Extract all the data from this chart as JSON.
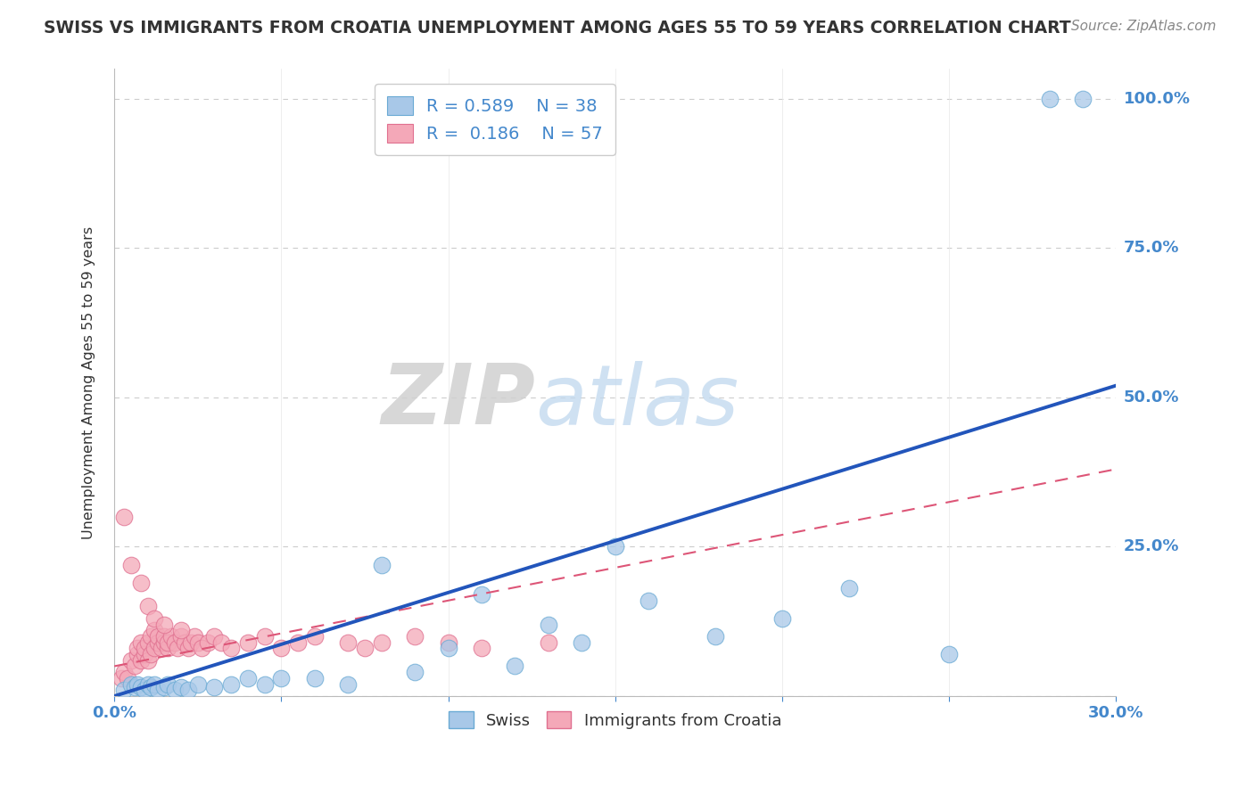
{
  "title": "SWISS VS IMMIGRANTS FROM CROATIA UNEMPLOYMENT AMONG AGES 55 TO 59 YEARS CORRELATION CHART",
  "source": "Source: ZipAtlas.com",
  "ylabel": "Unemployment Among Ages 55 to 59 years",
  "xlim": [
    0.0,
    0.3
  ],
  "ylim": [
    0.0,
    1.05
  ],
  "xticks": [
    0.0,
    0.05,
    0.1,
    0.15,
    0.2,
    0.25,
    0.3
  ],
  "xticklabels": [
    "0.0%",
    "",
    "",
    "",
    "",
    "",
    "30.0%"
  ],
  "ytick_positions": [
    0.0,
    0.25,
    0.5,
    0.75,
    1.0
  ],
  "ytick_labels": [
    "",
    "25.0%",
    "50.0%",
    "75.0%",
    "100.0%"
  ],
  "swiss_color": "#a8c8e8",
  "swiss_edge_color": "#6aaad4",
  "croatia_color": "#f4a8b8",
  "croatia_edge_color": "#e07090",
  "swiss_line_color": "#2255bb",
  "croatia_line_color": "#dd5577",
  "legend_R_swiss": "0.589",
  "legend_N_swiss": "38",
  "legend_R_croatia": "0.186",
  "legend_N_croatia": "57",
  "grid_color": "#cccccc",
  "title_color": "#333333",
  "title_fontsize": 13.5,
  "tick_color": "#4488cc",
  "background_color": "#ffffff",
  "swiss_scatter_x": [
    0.003,
    0.005,
    0.006,
    0.007,
    0.008,
    0.009,
    0.01,
    0.011,
    0.012,
    0.013,
    0.015,
    0.016,
    0.018,
    0.02,
    0.022,
    0.025,
    0.03,
    0.035,
    0.04,
    0.045,
    0.05,
    0.06,
    0.07,
    0.08,
    0.09,
    0.1,
    0.11,
    0.12,
    0.13,
    0.14,
    0.15,
    0.16,
    0.18,
    0.2,
    0.22,
    0.25,
    0.28,
    0.29
  ],
  "swiss_scatter_y": [
    0.01,
    0.02,
    0.015,
    0.02,
    0.015,
    0.01,
    0.02,
    0.015,
    0.02,
    0.01,
    0.015,
    0.02,
    0.01,
    0.015,
    0.01,
    0.02,
    0.015,
    0.02,
    0.03,
    0.02,
    0.03,
    0.03,
    0.02,
    0.22,
    0.04,
    0.08,
    0.17,
    0.05,
    0.12,
    0.09,
    0.25,
    0.16,
    0.1,
    0.13,
    0.18,
    0.07,
    1.0,
    1.0
  ],
  "croatia_scatter_x": [
    0.002,
    0.003,
    0.004,
    0.005,
    0.006,
    0.007,
    0.007,
    0.008,
    0.008,
    0.009,
    0.009,
    0.01,
    0.01,
    0.011,
    0.011,
    0.012,
    0.012,
    0.013,
    0.013,
    0.014,
    0.015,
    0.015,
    0.016,
    0.016,
    0.017,
    0.018,
    0.019,
    0.02,
    0.021,
    0.022,
    0.023,
    0.024,
    0.025,
    0.026,
    0.028,
    0.03,
    0.032,
    0.035,
    0.04,
    0.045,
    0.05,
    0.055,
    0.06,
    0.07,
    0.075,
    0.08,
    0.09,
    0.1,
    0.11,
    0.13,
    0.003,
    0.005,
    0.008,
    0.01,
    0.012,
    0.015,
    0.02
  ],
  "croatia_scatter_y": [
    0.03,
    0.04,
    0.03,
    0.06,
    0.05,
    0.07,
    0.08,
    0.06,
    0.09,
    0.07,
    0.08,
    0.06,
    0.09,
    0.07,
    0.1,
    0.08,
    0.11,
    0.09,
    0.1,
    0.08,
    0.09,
    0.1,
    0.08,
    0.09,
    0.1,
    0.09,
    0.08,
    0.1,
    0.09,
    0.08,
    0.09,
    0.1,
    0.09,
    0.08,
    0.09,
    0.1,
    0.09,
    0.08,
    0.09,
    0.1,
    0.08,
    0.09,
    0.1,
    0.09,
    0.08,
    0.09,
    0.1,
    0.09,
    0.08,
    0.09,
    0.3,
    0.22,
    0.19,
    0.15,
    0.13,
    0.12,
    0.11
  ],
  "swiss_line_x": [
    0.0,
    0.3
  ],
  "swiss_line_y": [
    0.0,
    0.52
  ],
  "croatia_line_x": [
    0.0,
    0.3
  ],
  "croatia_line_y": [
    0.05,
    0.38
  ]
}
